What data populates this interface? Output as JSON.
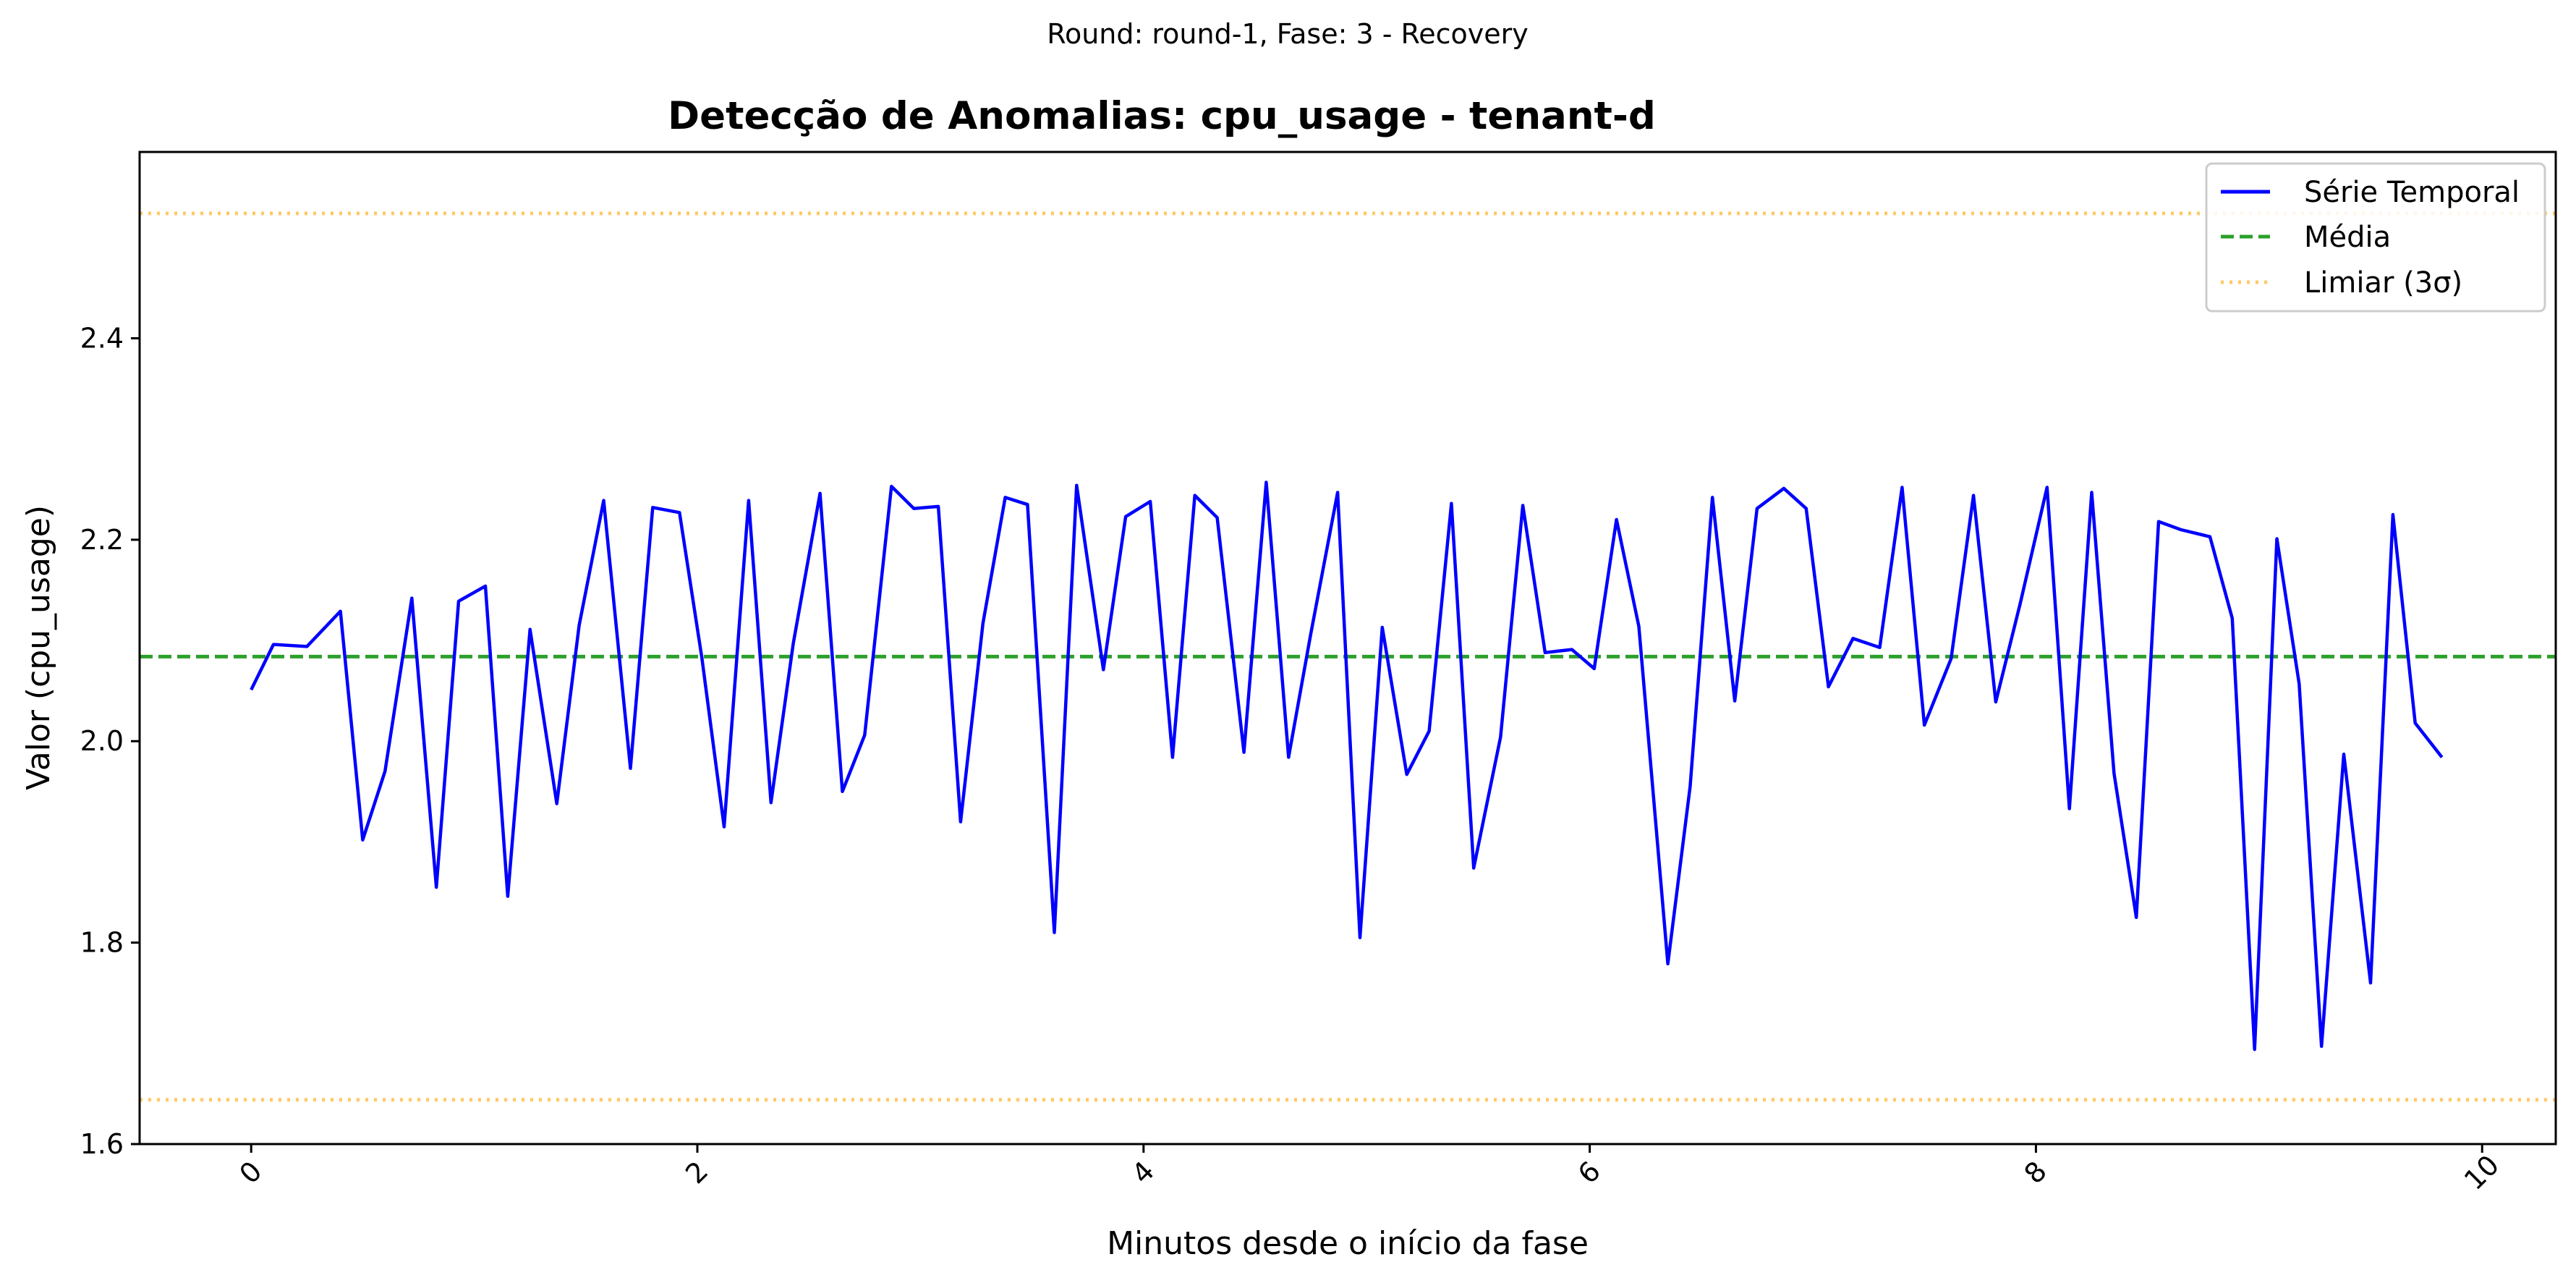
{
  "figure": {
    "suptitle": "Round: round-1, Fase: 3 - Recovery"
  },
  "chart_data": {
    "type": "line",
    "title": "Detecção de Anomalias: cpu_usage - tenant-d",
    "xlabel": "Minutos desde o início da fase",
    "ylabel": "Valor (cpu_usage)",
    "xlim": [
      -0.5,
      10.33
    ],
    "ylim": [
      1.6,
      2.585
    ],
    "xticks": [
      0,
      2,
      4,
      6,
      8,
      10
    ],
    "xtick_labels": [
      "0",
      "2",
      "4",
      "6",
      "8",
      "10"
    ],
    "xtick_rotation": 45,
    "yticks": [
      1.6,
      1.8,
      2.0,
      2.2,
      2.4
    ],
    "ytick_labels": [
      "1.6",
      "1.8",
      "2.0",
      "2.2",
      "2.4"
    ],
    "grid": false,
    "legend_position": "top-right",
    "series": [
      {
        "name": "Série Temporal",
        "color": "#0000ff",
        "style": "solid",
        "x": [
          0.0,
          0.1,
          0.25,
          0.4,
          0.5,
          0.6,
          0.72,
          0.83,
          0.93,
          1.05,
          1.15,
          1.25,
          1.37,
          1.47,
          1.58,
          1.7,
          1.8,
          1.92,
          2.02,
          2.12,
          2.23,
          2.33,
          2.43,
          2.55,
          2.65,
          2.75,
          2.87,
          2.97,
          3.08,
          3.18,
          3.28,
          3.38,
          3.48,
          3.6,
          3.7,
          3.82,
          3.92,
          4.03,
          4.13,
          4.23,
          4.33,
          4.45,
          4.55,
          4.65,
          4.75,
          4.87,
          4.97,
          5.07,
          5.18,
          5.28,
          5.38,
          5.48,
          5.6,
          5.7,
          5.8,
          5.92,
          6.02,
          6.12,
          6.22,
          6.35,
          6.45,
          6.55,
          6.65,
          6.75,
          6.87,
          6.97,
          7.07,
          7.18,
          7.3,
          7.4,
          7.5,
          7.62,
          7.72,
          7.82,
          7.93,
          8.05,
          8.15,
          8.25,
          8.35,
          8.45,
          8.55,
          8.65,
          8.78,
          8.88,
          8.98,
          9.08,
          9.18,
          9.28,
          9.38,
          9.5,
          9.6,
          9.7,
          9.82
        ],
        "y": [
          2.051,
          2.096,
          2.094,
          2.129,
          1.902,
          1.97,
          2.142,
          1.855,
          2.139,
          2.154,
          1.846,
          2.111,
          1.938,
          2.115,
          2.239,
          1.973,
          2.232,
          2.227,
          2.083,
          1.915,
          2.239,
          1.939,
          2.097,
          2.246,
          1.95,
          2.006,
          2.253,
          2.231,
          2.233,
          1.92,
          2.117,
          2.242,
          2.235,
          1.81,
          2.254,
          2.071,
          2.223,
          2.238,
          1.984,
          2.244,
          2.222,
          1.989,
          2.257,
          1.984,
          2.107,
          2.247,
          1.805,
          2.113,
          1.967,
          2.01,
          2.236,
          1.874,
          2.004,
          2.234,
          2.088,
          2.091,
          2.072,
          2.22,
          2.114,
          1.779,
          1.955,
          2.242,
          2.04,
          2.231,
          2.251,
          2.231,
          2.054,
          2.102,
          2.093,
          2.252,
          2.016,
          2.082,
          2.244,
          2.039,
          2.137,
          2.252,
          1.933,
          2.247,
          1.968,
          1.825,
          2.218,
          2.21,
          2.203,
          2.122,
          1.694,
          2.201,
          2.057,
          1.697,
          1.987,
          1.76,
          2.225,
          2.018,
          1.984
        ]
      },
      {
        "name": "Média",
        "color": "#2ca02c",
        "style": "dashed",
        "y": 2.084
      },
      {
        "name": "Limiar (3σ)",
        "color": "#ffa500",
        "style": "dotted",
        "y_upper": 2.524,
        "y_lower": 1.644
      }
    ]
  }
}
